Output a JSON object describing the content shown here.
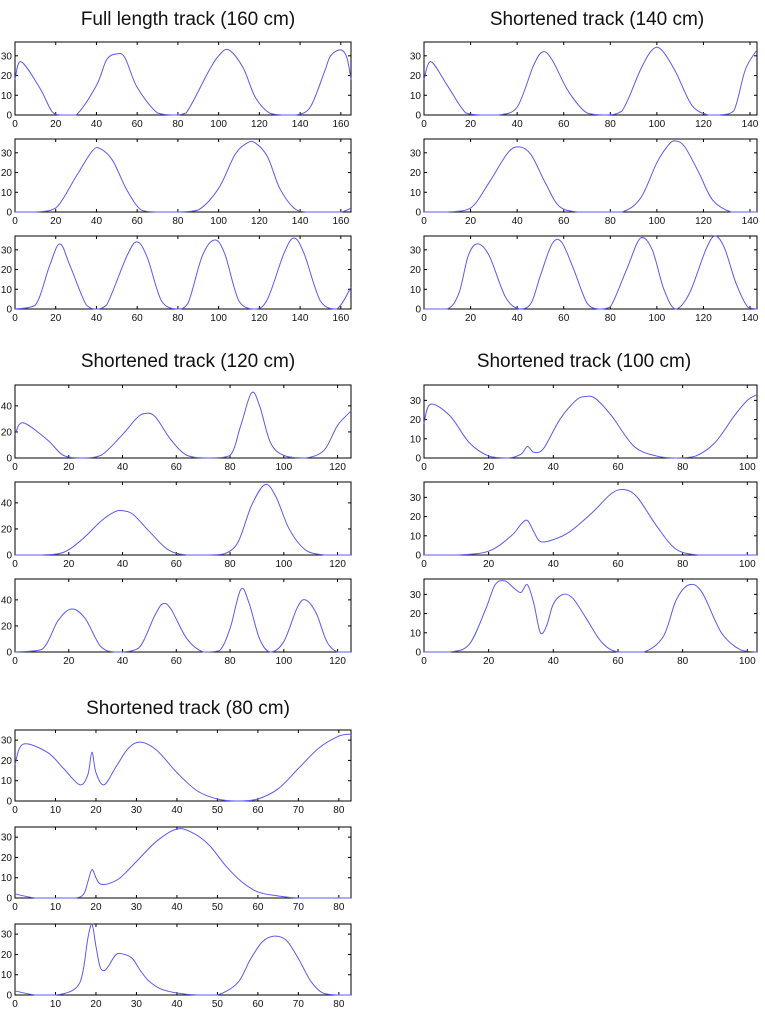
{
  "colors": {
    "line": "#5b5bf0",
    "axis": "#000000",
    "background": "#ffffff"
  },
  "groups": [
    {
      "title": "Full length track (160 cm)"
    },
    {
      "title": "Shortened track (140 cm)"
    },
    {
      "title": "Shortened track (120 cm)"
    },
    {
      "title": "Shortened track (100 cm)"
    },
    {
      "title": "Shortened track (80 cm)"
    }
  ],
  "chart_data": [
    {
      "type": "line",
      "xlim": [
        0,
        165
      ],
      "ylim": [
        0,
        37
      ],
      "xticks": [
        0,
        20,
        40,
        60,
        80,
        100,
        120,
        140,
        160
      ],
      "yticks": [
        0,
        10,
        20,
        30
      ],
      "x": [
        0,
        3,
        12,
        18,
        22,
        30,
        40,
        45,
        50,
        54,
        60,
        70,
        78,
        84,
        95,
        100,
        105,
        112,
        118,
        125,
        132,
        138,
        145,
        152,
        155,
        160,
        163,
        165
      ],
      "y": [
        18,
        27,
        14,
        2,
        0,
        0,
        15,
        28,
        31,
        29,
        14,
        1,
        0,
        1,
        22,
        30,
        33,
        24,
        9,
        1,
        0,
        0,
        4,
        22,
        30,
        33,
        29,
        18
      ]
    },
    {
      "type": "line",
      "xlim": [
        0,
        165
      ],
      "ylim": [
        0,
        37
      ],
      "xticks": [
        0,
        20,
        40,
        60,
        80,
        100,
        120,
        140,
        160
      ],
      "yticks": [
        0,
        10,
        20,
        30
      ],
      "x": [
        0,
        10,
        20,
        30,
        38,
        42,
        48,
        55,
        62,
        70,
        80,
        90,
        100,
        108,
        114,
        118,
        124,
        130,
        137,
        143,
        150,
        160,
        165
      ],
      "y": [
        0,
        0,
        2,
        18,
        31,
        32,
        26,
        11,
        1,
        0,
        0,
        1,
        12,
        29,
        35,
        35,
        28,
        12,
        2,
        0,
        0,
        0,
        2
      ]
    },
    {
      "type": "line",
      "xlim": [
        0,
        165
      ],
      "ylim": [
        0,
        37
      ],
      "xticks": [
        0,
        20,
        40,
        60,
        80,
        100,
        120,
        140,
        160
      ],
      "yticks": [
        0,
        10,
        20,
        30
      ],
      "x": [
        0,
        10,
        17,
        22,
        27,
        35,
        40,
        45,
        55,
        60,
        65,
        72,
        80,
        85,
        92,
        98,
        103,
        110,
        118,
        124,
        132,
        137,
        142,
        150,
        158,
        165
      ],
      "y": [
        0,
        2,
        22,
        33,
        22,
        2,
        0,
        2,
        27,
        34,
        26,
        4,
        0,
        3,
        27,
        35,
        28,
        4,
        0,
        5,
        28,
        36,
        28,
        4,
        0,
        11
      ]
    },
    {
      "type": "line",
      "xlim": [
        0,
        143
      ],
      "ylim": [
        0,
        37
      ],
      "xticks": [
        0,
        20,
        40,
        60,
        80,
        100,
        120,
        140
      ],
      "yticks": [
        0,
        10,
        20,
        30
      ],
      "x": [
        0,
        3,
        10,
        18,
        25,
        32,
        40,
        47,
        51,
        55,
        62,
        70,
        78,
        85,
        93,
        98,
        102,
        108,
        115,
        122,
        127,
        133,
        138,
        143
      ],
      "y": [
        18,
        27,
        15,
        1,
        0,
        0,
        4,
        25,
        32,
        28,
        12,
        1,
        0,
        2,
        23,
        33,
        33,
        22,
        5,
        0,
        0,
        2,
        23,
        33
      ]
    },
    {
      "type": "line",
      "xlim": [
        0,
        143
      ],
      "ylim": [
        0,
        37
      ],
      "xticks": [
        0,
        20,
        40,
        60,
        80,
        100,
        120,
        140
      ],
      "yticks": [
        0,
        10,
        20,
        30
      ],
      "x": [
        0,
        10,
        20,
        28,
        36,
        41,
        46,
        52,
        58,
        66,
        75,
        85,
        93,
        100,
        105,
        108,
        112,
        118,
        124,
        132,
        140,
        143
      ],
      "y": [
        0,
        0,
        2,
        15,
        30,
        33,
        29,
        15,
        3,
        0,
        0,
        0,
        7,
        25,
        34,
        36,
        33,
        20,
        6,
        0,
        0,
        0
      ]
    },
    {
      "type": "line",
      "xlim": [
        0,
        143
      ],
      "ylim": [
        0,
        37
      ],
      "xticks": [
        0,
        20,
        40,
        60,
        80,
        100,
        120,
        140
      ],
      "yticks": [
        0,
        10,
        20,
        30
      ],
      "x": [
        0,
        10,
        15,
        19,
        23,
        28,
        35,
        41,
        46,
        50,
        55,
        59,
        64,
        70,
        75,
        80,
        87,
        93,
        98,
        103,
        108,
        114,
        121,
        125,
        129,
        134,
        139,
        143
      ],
      "y": [
        0,
        0,
        8,
        27,
        33,
        27,
        6,
        0,
        3,
        17,
        33,
        34,
        21,
        3,
        0,
        1,
        20,
        36,
        30,
        10,
        0,
        8,
        30,
        37,
        31,
        13,
        1,
        0
      ]
    },
    {
      "type": "line",
      "xlim": [
        0,
        125
      ],
      "ylim": [
        0,
        56
      ],
      "xticks": [
        0,
        20,
        40,
        60,
        80,
        100,
        120
      ],
      "yticks": [
        0,
        20,
        40
      ],
      "x": [
        0,
        3,
        12,
        18,
        25,
        32,
        40,
        45,
        48,
        52,
        58,
        64,
        72,
        80,
        84,
        88,
        91,
        95,
        100,
        108,
        115,
        120,
        125
      ],
      "y": [
        18,
        27,
        14,
        2,
        0,
        2,
        18,
        30,
        34,
        32,
        14,
        2,
        0,
        2,
        25,
        50,
        40,
        12,
        2,
        0,
        6,
        25,
        36
      ]
    },
    {
      "type": "line",
      "xlim": [
        0,
        125
      ],
      "ylim": [
        0,
        56
      ],
      "xticks": [
        0,
        20,
        40,
        60,
        80,
        100,
        120
      ],
      "yticks": [
        0,
        20,
        40
      ],
      "x": [
        0,
        10,
        18,
        25,
        32,
        37,
        40,
        44,
        50,
        57,
        64,
        72,
        78,
        83,
        88,
        93,
        97,
        102,
        108,
        115,
        120,
        125
      ],
      "y": [
        0,
        0,
        2,
        12,
        26,
        33,
        34,
        31,
        18,
        4,
        0,
        0,
        1,
        10,
        38,
        54,
        45,
        20,
        4,
        0,
        0,
        0
      ]
    },
    {
      "type": "line",
      "xlim": [
        0,
        125
      ],
      "ylim": [
        0,
        56
      ],
      "xticks": [
        0,
        20,
        40,
        60,
        80,
        100,
        120
      ],
      "yticks": [
        0,
        20,
        40
      ],
      "x": [
        0,
        10,
        16,
        21,
        26,
        32,
        38,
        46,
        52,
        55,
        58,
        64,
        70,
        76,
        80,
        84,
        87,
        91,
        95,
        100,
        105,
        108,
        112,
        116,
        120,
        125
      ],
      "y": [
        0,
        2,
        24,
        33,
        26,
        4,
        0,
        3,
        28,
        37,
        33,
        10,
        0,
        1,
        18,
        48,
        38,
        10,
        0,
        8,
        34,
        40,
        30,
        8,
        0,
        0
      ]
    },
    {
      "type": "line",
      "xlim": [
        0,
        103
      ],
      "ylim": [
        0,
        38
      ],
      "xticks": [
        0,
        20,
        40,
        60,
        80,
        100
      ],
      "yticks": [
        0,
        10,
        20,
        30
      ],
      "x": [
        0,
        2,
        8,
        14,
        20,
        26,
        30,
        32,
        34,
        37,
        42,
        47,
        50,
        53,
        58,
        65,
        72,
        78,
        84,
        90,
        96,
        100,
        103
      ],
      "y": [
        18,
        28,
        22,
        8,
        1,
        0,
        2,
        6,
        3,
        5,
        20,
        30,
        32,
        31,
        22,
        6,
        1,
        0,
        1,
        8,
        22,
        30,
        33
      ]
    },
    {
      "type": "line",
      "xlim": [
        0,
        103
      ],
      "ylim": [
        0,
        38
      ],
      "xticks": [
        0,
        20,
        40,
        60,
        80,
        100
      ],
      "yticks": [
        0,
        10,
        20,
        30
      ],
      "x": [
        0,
        10,
        20,
        27,
        30,
        32,
        34,
        36,
        40,
        45,
        52,
        58,
        62,
        66,
        72,
        78,
        85,
        92,
        100,
        103
      ],
      "y": [
        0,
        0,
        2,
        10,
        16,
        18,
        12,
        7,
        8,
        12,
        22,
        32,
        34,
        30,
        15,
        3,
        0,
        0,
        0,
        0
      ]
    },
    {
      "type": "line",
      "xlim": [
        0,
        103
      ],
      "ylim": [
        0,
        38
      ],
      "xticks": [
        0,
        20,
        40,
        60,
        80,
        100
      ],
      "yticks": [
        0,
        10,
        20,
        30
      ],
      "x": [
        0,
        8,
        14,
        19,
        22,
        25,
        28,
        30,
        32,
        34,
        36,
        38,
        40,
        43,
        46,
        50,
        55,
        60,
        68,
        74,
        78,
        82,
        86,
        92,
        98,
        103
      ],
      "y": [
        0,
        0,
        4,
        22,
        35,
        37,
        33,
        31,
        35,
        25,
        10,
        14,
        25,
        30,
        28,
        18,
        5,
        0,
        0,
        8,
        27,
        35,
        31,
        10,
        1,
        0
      ]
    },
    {
      "type": "line",
      "xlim": [
        0,
        83
      ],
      "ylim": [
        0,
        35
      ],
      "xticks": [
        0,
        10,
        20,
        30,
        40,
        50,
        60,
        70,
        80
      ],
      "yticks": [
        0,
        10,
        20,
        30
      ],
      "x": [
        0,
        2,
        8,
        12,
        16,
        18,
        19,
        20,
        22,
        25,
        28,
        31,
        35,
        40,
        45,
        50,
        55,
        60,
        65,
        70,
        75,
        80,
        83
      ],
      "y": [
        18,
        28,
        24,
        16,
        8,
        13,
        24,
        14,
        8,
        17,
        26,
        29,
        25,
        14,
        5,
        1,
        0,
        1,
        6,
        16,
        26,
        32,
        33
      ]
    },
    {
      "type": "line",
      "xlim": [
        0,
        83
      ],
      "ylim": [
        0,
        35
      ],
      "xticks": [
        0,
        10,
        20,
        30,
        40,
        50,
        60,
        70,
        80
      ],
      "yticks": [
        0,
        10,
        20,
        30
      ],
      "x": [
        0,
        5,
        10,
        15,
        17,
        18,
        19,
        20,
        21,
        23,
        26,
        30,
        35,
        40,
        44,
        48,
        52,
        56,
        60,
        65,
        70,
        75,
        80,
        83
      ],
      "y": [
        2,
        0,
        0,
        0,
        2,
        8,
        14,
        10,
        7,
        7,
        10,
        18,
        28,
        34,
        32,
        26,
        16,
        8,
        3,
        1,
        0,
        0,
        0,
        0
      ]
    },
    {
      "type": "line",
      "xlim": [
        0,
        83
      ],
      "ylim": [
        0,
        35
      ],
      "xticks": [
        0,
        10,
        20,
        30,
        40,
        50,
        60,
        70,
        80
      ],
      "yticks": [
        0,
        10,
        20,
        30
      ],
      "x": [
        0,
        5,
        10,
        14,
        16,
        17,
        18,
        19,
        20,
        21,
        22,
        23,
        25,
        27,
        29,
        31,
        33,
        36,
        40,
        45,
        50,
        55,
        58,
        61,
        64,
        67,
        70,
        73,
        76,
        80,
        83
      ],
      "y": [
        2,
        0,
        0,
        2,
        6,
        14,
        28,
        35,
        24,
        14,
        12,
        14,
        20,
        20,
        18,
        12,
        7,
        3,
        1,
        0,
        0,
        6,
        17,
        26,
        29,
        27,
        18,
        7,
        1,
        0,
        0
      ]
    }
  ]
}
